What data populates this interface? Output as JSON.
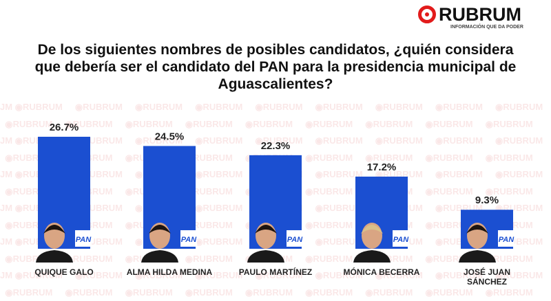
{
  "logo": {
    "name": "RUBRUM",
    "tagline": "INFORMACIÓN QUE DA PODER"
  },
  "colors": {
    "bar": "#1b4fd1",
    "logo_red": "#e21b1b"
  },
  "chart_data": {
    "type": "bar",
    "title": "De los siguientes nombres de posibles candidatos, ¿quién considera que debería ser el candidato del PAN para la presidencia municipal de Aguascalientes?",
    "categories": [
      "QUIQUE GALO",
      "ALMA HILDA MEDINA",
      "PAULO MARTÍNEZ",
      "MÓNICA BECERRA",
      "JOSÉ JUAN SÁNCHEZ"
    ],
    "values": [
      26.7,
      24.5,
      22.3,
      17.2,
      9.3
    ],
    "data_labels": [
      "26.7%",
      "24.5%",
      "22.3%",
      "17.2%",
      "9.3%"
    ],
    "party_badge": "PAN",
    "ylim": [
      0,
      30
    ],
    "grid": false
  }
}
